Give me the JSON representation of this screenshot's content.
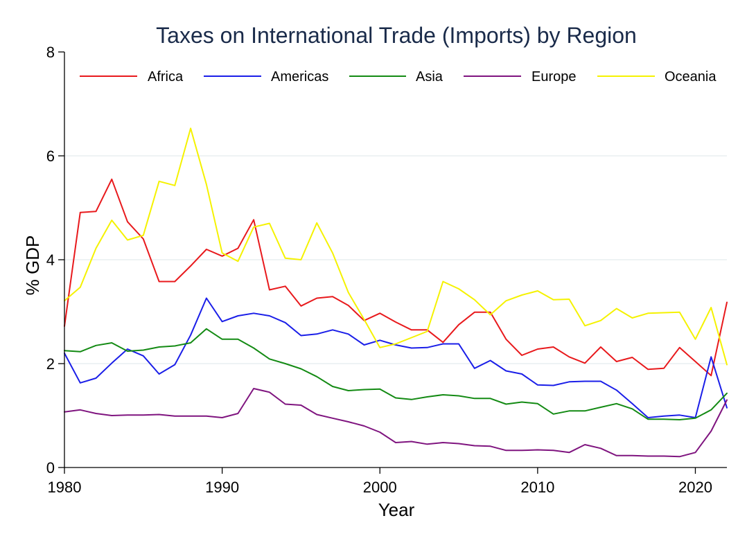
{
  "chart_data": {
    "type": "line",
    "title": "Taxes on International Trade (Imports) by Region",
    "xlabel": "Year",
    "ylabel": "% GDP",
    "xlim": [
      1980,
      2022
    ],
    "ylim": [
      0,
      8
    ],
    "xticks": [
      1980,
      1990,
      2000,
      2010,
      2020
    ],
    "yticks": [
      0,
      2,
      4,
      6,
      8
    ],
    "grid": true,
    "legend_position": "top",
    "x": [
      1980,
      1981,
      1982,
      1983,
      1984,
      1985,
      1986,
      1987,
      1988,
      1989,
      1990,
      1991,
      1992,
      1993,
      1994,
      1995,
      1996,
      1997,
      1998,
      1999,
      2000,
      2001,
      2002,
      2003,
      2004,
      2005,
      2006,
      2007,
      2008,
      2009,
      2010,
      2011,
      2012,
      2013,
      2014,
      2015,
      2016,
      2017,
      2018,
      2019,
      2020,
      2021,
      2022
    ],
    "series": [
      {
        "name": "Africa",
        "color": "#e8191c",
        "values": [
          2.72,
          4.91,
          4.93,
          5.55,
          4.73,
          4.4,
          3.58,
          3.58,
          3.88,
          4.2,
          4.07,
          4.22,
          4.77,
          3.42,
          3.49,
          3.11,
          3.26,
          3.29,
          3.12,
          2.83,
          2.97,
          2.8,
          2.65,
          2.65,
          2.41,
          2.75,
          2.99,
          2.99,
          2.47,
          2.16,
          2.28,
          2.32,
          2.13,
          2.01,
          2.32,
          2.04,
          2.12,
          1.89,
          1.91,
          2.31,
          2.04,
          1.77,
          3.18
        ]
      },
      {
        "name": "Americas",
        "color": "#1a1ee8",
        "values": [
          2.2,
          1.63,
          1.72,
          2.01,
          2.28,
          2.15,
          1.8,
          1.98,
          2.55,
          3.26,
          2.81,
          2.92,
          2.97,
          2.92,
          2.79,
          2.54,
          2.57,
          2.65,
          2.57,
          2.36,
          2.45,
          2.36,
          2.3,
          2.31,
          2.38,
          2.38,
          1.91,
          2.06,
          1.86,
          1.8,
          1.59,
          1.58,
          1.65,
          1.66,
          1.66,
          1.49,
          1.23,
          0.96,
          0.99,
          1.01,
          0.96,
          2.13,
          1.15
        ]
      },
      {
        "name": "Asia",
        "color": "#138a13",
        "values": [
          2.25,
          2.23,
          2.35,
          2.4,
          2.24,
          2.26,
          2.32,
          2.34,
          2.4,
          2.67,
          2.47,
          2.47,
          2.3,
          2.09,
          2.0,
          1.9,
          1.75,
          1.56,
          1.48,
          1.5,
          1.51,
          1.34,
          1.31,
          1.36,
          1.4,
          1.38,
          1.33,
          1.33,
          1.22,
          1.26,
          1.23,
          1.03,
          1.09,
          1.09,
          1.16,
          1.23,
          1.13,
          0.93,
          0.93,
          0.92,
          0.95,
          1.11,
          1.43
        ]
      },
      {
        "name": "Europe",
        "color": "#7f147f",
        "values": [
          1.07,
          1.11,
          1.04,
          1.0,
          1.01,
          1.01,
          1.02,
          0.99,
          0.99,
          0.99,
          0.96,
          1.04,
          1.52,
          1.45,
          1.22,
          1.2,
          1.02,
          0.95,
          0.88,
          0.8,
          0.68,
          0.48,
          0.5,
          0.45,
          0.48,
          0.46,
          0.42,
          0.41,
          0.33,
          0.33,
          0.34,
          0.33,
          0.29,
          0.44,
          0.37,
          0.23,
          0.23,
          0.22,
          0.22,
          0.21,
          0.29,
          0.7,
          1.3
        ]
      },
      {
        "name": "Oceania",
        "color": "#f5f200",
        "values": [
          3.21,
          3.47,
          4.22,
          4.76,
          4.38,
          4.47,
          5.51,
          5.43,
          6.53,
          5.45,
          4.13,
          3.97,
          4.63,
          4.7,
          4.03,
          4.0,
          4.71,
          4.13,
          3.37,
          2.85,
          2.31,
          2.38,
          2.5,
          2.62,
          3.58,
          3.44,
          3.23,
          2.94,
          3.21,
          3.32,
          3.4,
          3.23,
          3.24,
          2.73,
          2.83,
          3.06,
          2.88,
          2.97,
          2.98,
          2.99,
          2.47,
          3.08,
          1.98
        ]
      }
    ]
  }
}
